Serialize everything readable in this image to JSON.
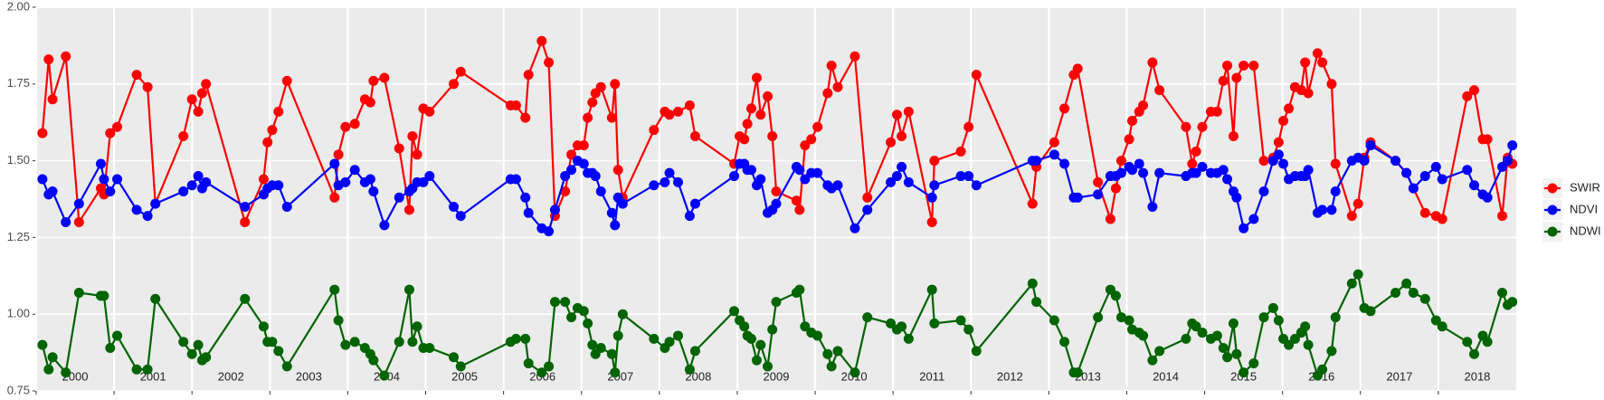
{
  "chart_data": {
    "type": "line",
    "x": [
      2000.08,
      2000.16,
      2000.21,
      2000.38,
      2000.55,
      2000.83,
      2000.87,
      2000.95,
      2001.04,
      2001.29,
      2001.43,
      2001.53,
      2001.89,
      2002.0,
      2002.08,
      2002.13,
      2002.18,
      2002.68,
      2002.92,
      2002.97,
      2003.03,
      2003.11,
      2003.22,
      2003.83,
      2003.88,
      2003.97,
      2004.09,
      2004.22,
      2004.29,
      2004.33,
      2004.47,
      2004.66,
      2004.79,
      2004.83,
      2004.89,
      2004.97,
      2005.05,
      2005.36,
      2005.45,
      2006.09,
      2006.16,
      2006.28,
      2006.32,
      2006.49,
      2006.58,
      2006.66,
      2006.79,
      2006.87,
      2006.95,
      2007.03,
      2007.08,
      2007.14,
      2007.18,
      2007.25,
      2007.39,
      2007.43,
      2007.47,
      2007.53,
      2007.93,
      2008.07,
      2008.13,
      2008.24,
      2008.39,
      2008.46,
      2008.96,
      2009.03,
      2009.09,
      2009.13,
      2009.18,
      2009.25,
      2009.3,
      2009.39,
      2009.45,
      2009.5,
      2009.76,
      2009.8,
      2009.87,
      2009.95,
      2010.03,
      2010.16,
      2010.21,
      2010.29,
      2010.51,
      2010.67,
      2010.97,
      2011.05,
      2011.11,
      2011.2,
      2011.5,
      2011.53,
      2011.87,
      2011.97,
      2012.07,
      2012.79,
      2012.84,
      2013.07,
      2013.2,
      2013.32,
      2013.37,
      2013.63,
      2013.79,
      2013.86,
      2013.93,
      2014.03,
      2014.07,
      2014.16,
      2014.21,
      2014.33,
      2014.42,
      2014.76,
      2014.84,
      2014.89,
      2014.97,
      2015.08,
      2015.16,
      2015.24,
      2015.29,
      2015.37,
      2015.41,
      2015.5,
      2015.63,
      2015.76,
      2015.88,
      2015.95,
      2016.01,
      2016.08,
      2016.16,
      2016.24,
      2016.29,
      2016.33,
      2016.45,
      2016.51,
      2016.63,
      2016.68,
      2016.89,
      2016.97,
      2017.05,
      2017.13,
      2017.45,
      2017.59,
      2017.68,
      2017.83,
      2017.97,
      2018.05,
      2018.37,
      2018.46,
      2018.57,
      2018.63,
      2018.82,
      2018.89,
      2018.95
    ],
    "series": [
      {
        "name": "SWIR",
        "color": "#ff0000",
        "values": [
          1.59,
          1.83,
          1.7,
          1.84,
          1.3,
          1.41,
          1.39,
          1.59,
          1.61,
          1.78,
          1.74,
          1.36,
          1.58,
          1.7,
          1.66,
          1.72,
          1.75,
          1.3,
          1.44,
          1.56,
          1.6,
          1.66,
          1.76,
          1.38,
          1.52,
          1.61,
          1.62,
          1.7,
          1.69,
          1.76,
          1.77,
          1.54,
          1.34,
          1.58,
          1.52,
          1.67,
          1.66,
          1.75,
          1.79,
          1.68,
          1.68,
          1.64,
          1.78,
          1.89,
          1.82,
          1.32,
          1.4,
          1.52,
          1.55,
          1.55,
          1.64,
          1.69,
          1.72,
          1.74,
          1.64,
          1.75,
          1.47,
          1.38,
          1.6,
          1.66,
          1.65,
          1.66,
          1.68,
          1.58,
          1.49,
          1.58,
          1.57,
          1.62,
          1.67,
          1.77,
          1.65,
          1.71,
          1.58,
          1.4,
          1.37,
          1.34,
          1.55,
          1.57,
          1.61,
          1.72,
          1.81,
          1.74,
          1.84,
          1.38,
          1.56,
          1.65,
          1.58,
          1.66,
          1.3,
          1.5,
          1.53,
          1.61,
          1.78,
          1.36,
          1.48,
          1.56,
          1.67,
          1.78,
          1.8,
          1.43,
          1.31,
          1.41,
          1.5,
          1.57,
          1.63,
          1.66,
          1.68,
          1.82,
          1.73,
          1.61,
          1.49,
          1.53,
          1.61,
          1.66,
          1.66,
          1.76,
          1.81,
          1.58,
          1.77,
          1.81,
          1.81,
          1.5,
          1.51,
          1.56,
          1.63,
          1.67,
          1.74,
          1.73,
          1.82,
          1.72,
          1.85,
          1.82,
          1.75,
          1.49,
          1.32,
          1.36,
          1.51,
          1.56,
          1.5,
          1.46,
          1.41,
          1.33,
          1.32,
          1.31,
          1.71,
          1.73,
          1.57,
          1.57,
          1.32,
          1.51,
          1.49
        ]
      },
      {
        "name": "NDVI",
        "color": "#0000ff",
        "values": [
          1.44,
          1.39,
          1.4,
          1.3,
          1.36,
          1.49,
          1.44,
          1.4,
          1.44,
          1.34,
          1.32,
          1.36,
          1.4,
          1.42,
          1.45,
          1.41,
          1.43,
          1.35,
          1.39,
          1.41,
          1.42,
          1.42,
          1.35,
          1.49,
          1.42,
          1.43,
          1.47,
          1.43,
          1.44,
          1.4,
          1.29,
          1.38,
          1.4,
          1.41,
          1.43,
          1.43,
          1.45,
          1.35,
          1.32,
          1.44,
          1.44,
          1.38,
          1.33,
          1.28,
          1.27,
          1.34,
          1.45,
          1.47,
          1.5,
          1.49,
          1.46,
          1.46,
          1.45,
          1.4,
          1.33,
          1.29,
          1.38,
          1.36,
          1.42,
          1.43,
          1.46,
          1.43,
          1.32,
          1.36,
          1.45,
          1.49,
          1.49,
          1.47,
          1.47,
          1.42,
          1.44,
          1.33,
          1.34,
          1.36,
          1.48,
          1.47,
          1.44,
          1.46,
          1.46,
          1.42,
          1.41,
          1.42,
          1.28,
          1.34,
          1.43,
          1.45,
          1.48,
          1.43,
          1.38,
          1.42,
          1.45,
          1.45,
          1.42,
          1.5,
          1.5,
          1.52,
          1.49,
          1.38,
          1.38,
          1.39,
          1.45,
          1.45,
          1.46,
          1.48,
          1.47,
          1.49,
          1.46,
          1.35,
          1.46,
          1.45,
          1.46,
          1.46,
          1.48,
          1.46,
          1.46,
          1.47,
          1.44,
          1.4,
          1.38,
          1.28,
          1.31,
          1.4,
          1.5,
          1.52,
          1.49,
          1.44,
          1.45,
          1.45,
          1.45,
          1.47,
          1.33,
          1.34,
          1.34,
          1.4,
          1.5,
          1.51,
          1.5,
          1.55,
          1.5,
          1.46,
          1.41,
          1.45,
          1.48,
          1.44,
          1.47,
          1.42,
          1.39,
          1.38,
          1.48,
          1.5,
          1.55
        ]
      },
      {
        "name": "NDWI",
        "color": "#006400",
        "values": [
          0.9,
          0.82,
          0.86,
          0.81,
          1.07,
          1.06,
          1.06,
          0.89,
          0.93,
          0.82,
          0.82,
          1.05,
          0.91,
          0.87,
          0.9,
          0.85,
          0.86,
          1.05,
          0.96,
          0.91,
          0.91,
          0.88,
          0.83,
          1.08,
          0.98,
          0.9,
          0.91,
          0.89,
          0.87,
          0.85,
          0.8,
          0.91,
          1.08,
          0.91,
          0.96,
          0.89,
          0.89,
          0.86,
          0.83,
          0.91,
          0.92,
          0.92,
          0.84,
          0.81,
          0.83,
          1.04,
          1.04,
          0.99,
          1.02,
          1.01,
          0.97,
          0.9,
          0.87,
          0.89,
          0.87,
          0.81,
          0.93,
          1.0,
          0.92,
          0.89,
          0.91,
          0.93,
          0.82,
          0.88,
          1.01,
          0.98,
          0.96,
          0.93,
          0.92,
          0.85,
          0.9,
          0.83,
          0.95,
          1.04,
          1.07,
          1.08,
          0.96,
          0.94,
          0.93,
          0.87,
          0.83,
          0.88,
          0.81,
          0.99,
          0.97,
          0.95,
          0.96,
          0.92,
          1.08,
          0.97,
          0.98,
          0.95,
          0.88,
          1.1,
          1.04,
          0.98,
          0.91,
          0.81,
          0.81,
          0.99,
          1.08,
          1.06,
          0.99,
          0.98,
          0.95,
          0.94,
          0.93,
          0.85,
          0.88,
          0.92,
          0.97,
          0.96,
          0.94,
          0.92,
          0.93,
          0.89,
          0.86,
          0.97,
          0.87,
          0.81,
          0.84,
          0.99,
          1.02,
          0.98,
          0.92,
          0.9,
          0.92,
          0.94,
          0.96,
          0.9,
          0.8,
          0.82,
          0.88,
          0.99,
          1.1,
          1.13,
          1.02,
          1.01,
          1.07,
          1.1,
          1.07,
          1.05,
          0.98,
          0.96,
          0.91,
          0.87,
          0.93,
          0.91,
          1.07,
          1.03,
          1.04
        ]
      }
    ],
    "xlim": [
      2000,
      2019
    ],
    "xticks": [
      {
        "value": 2000,
        "label": "2000"
      },
      {
        "value": 2001,
        "label": "2001"
      },
      {
        "value": 2002,
        "label": "2002"
      },
      {
        "value": 2003,
        "label": "2003"
      },
      {
        "value": 2004,
        "label": "2004"
      },
      {
        "value": 2005,
        "label": "2005"
      },
      {
        "value": 2006,
        "label": "2006"
      },
      {
        "value": 2007,
        "label": "2007"
      },
      {
        "value": 2008,
        "label": "2008"
      },
      {
        "value": 2009,
        "label": "2009"
      },
      {
        "value": 2010,
        "label": "2010"
      },
      {
        "value": 2011,
        "label": "2011"
      },
      {
        "value": 2012,
        "label": "2012"
      },
      {
        "value": 2013,
        "label": "2013"
      },
      {
        "value": 2014,
        "label": "2014"
      },
      {
        "value": 2015,
        "label": "2015"
      },
      {
        "value": 2016,
        "label": "2016"
      },
      {
        "value": 2017,
        "label": "2017"
      },
      {
        "value": 2018,
        "label": "2018"
      }
    ],
    "ylim": [
      0.75,
      2.0
    ],
    "yticks": [
      {
        "value": 0.75,
        "label": "0.75"
      },
      {
        "value": 1,
        "label": "1.00"
      },
      {
        "value": 1.25,
        "label": "1.25"
      },
      {
        "value": 1.5,
        "label": "1.50"
      },
      {
        "value": 1.75,
        "label": "1.75"
      },
      {
        "value": 2,
        "label": "2.00"
      }
    ],
    "grid": true
  }
}
